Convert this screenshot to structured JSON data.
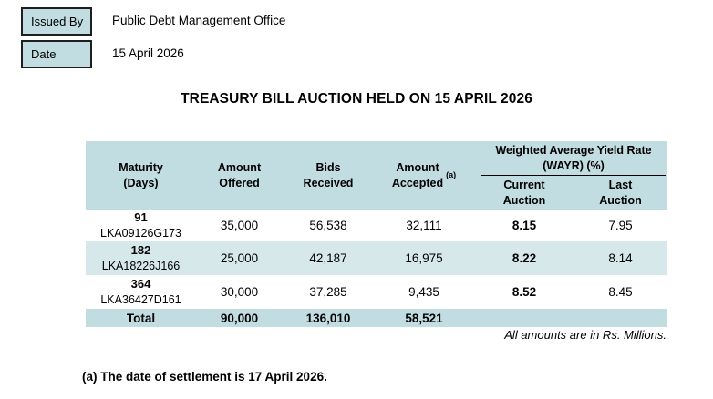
{
  "colors": {
    "header_blue": "#c2dde2",
    "alt_row_blue": "#d6e8ea",
    "box_border": "#1f1f1f",
    "text": "#000000"
  },
  "issued_by": {
    "label": "Issued By",
    "value": "Public Debt Management Office"
  },
  "date": {
    "label": "Date",
    "value": "15 April 2026"
  },
  "title": "TREASURY BILL AUCTION HELD ON 15 APRIL 2026",
  "table": {
    "headers": {
      "maturity": "Maturity\n(Days)",
      "amount_offered": "Amount\nOffered",
      "bids_received": "Bids\nReceived",
      "amount_accepted": "Amount\nAccepted",
      "amount_accepted_sup": "(a)",
      "wayr_group": "Weighted Average Yield Rate\n(WAYR) (%)",
      "current_auction": "Current\nAuction",
      "last_auction": "Last\nAuction"
    },
    "rows": [
      {
        "days": "91",
        "isin": "LKA09126G173",
        "offered": "35,000",
        "bids": "56,538",
        "accepted": "32,111",
        "current": "8.15",
        "last": "7.95"
      },
      {
        "days": "182",
        "isin": "LKA18226J166",
        "offered": "25,000",
        "bids": "42,187",
        "accepted": "16,975",
        "current": "8.22",
        "last": "8.14"
      },
      {
        "days": "364",
        "isin": "LKA36427D161",
        "offered": "30,000",
        "bids": "37,285",
        "accepted": "9,435",
        "current": "8.52",
        "last": "8.45"
      }
    ],
    "total": {
      "label": "Total",
      "offered": "90,000",
      "bids": "136,010",
      "accepted": "58,521"
    },
    "note": "All amounts are in Rs. Millions."
  },
  "footnote": "(a) The date of settlement is 17 April 2026."
}
